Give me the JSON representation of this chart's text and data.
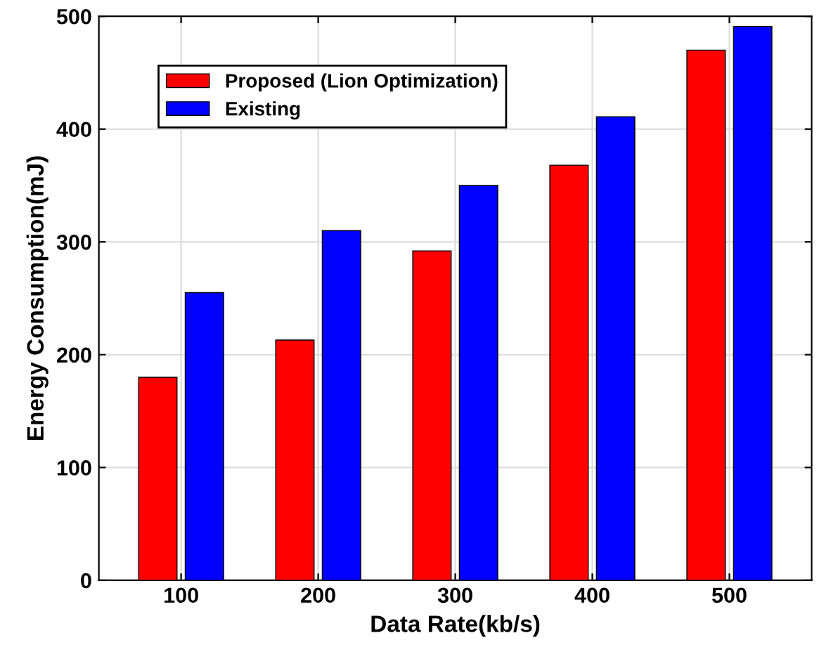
{
  "chart_data": {
    "type": "bar",
    "xlabel": "Data Rate(kb/s)",
    "ylabel": "Energy Consumption(mJ)",
    "categories": [
      "100",
      "200",
      "300",
      "400",
      "500"
    ],
    "series": [
      {
        "name": "Proposed (Lion Optimization)",
        "color": "#ff0000",
        "values": [
          180,
          213,
          292,
          368,
          470
        ]
      },
      {
        "name": "Existing",
        "color": "#0000ff",
        "values": [
          255,
          310,
          350,
          411,
          491
        ]
      }
    ],
    "ylim": [
      0,
      500
    ],
    "yticks": [
      0,
      100,
      200,
      300,
      400,
      500
    ],
    "grid": true,
    "legend": "top left"
  }
}
